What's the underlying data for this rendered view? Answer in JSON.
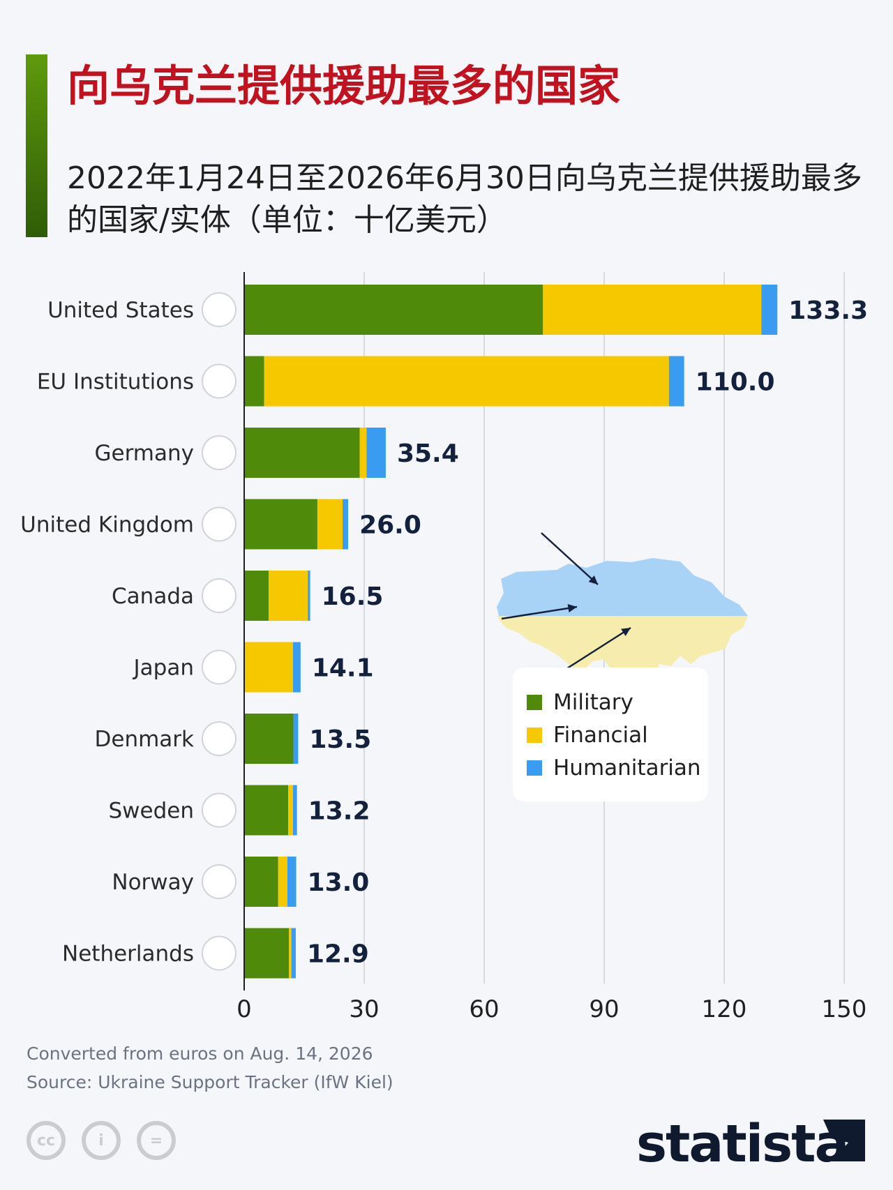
{
  "header": {
    "title": "向乌克兰提供援助最多的国家",
    "subtitle": "2022年1月24日至2026年6月30日向乌克兰提供援助最多的国家/实体（单位：十亿美元）"
  },
  "colors": {
    "accent_red": "#c1121f",
    "military": "#4f8a0b",
    "financial": "#f5c800",
    "humanitarian": "#3a9cf0",
    "map_blue": "#a9d2f7",
    "map_yellow": "#f6ecae"
  },
  "chart_data": {
    "type": "bar",
    "orientation": "horizontal",
    "stacked": true,
    "categories": [
      "United States",
      "EU Institutions",
      "Germany",
      "United Kingdom",
      "Canada",
      "Japan",
      "Denmark",
      "Sweden",
      "Norway",
      "Netherlands"
    ],
    "flags": [
      "us-flag-icon",
      "eu-flag-icon",
      "germany-flag-icon",
      "uk-flag-icon",
      "canada-flag-icon",
      "japan-flag-icon",
      "denmark-flag-icon",
      "sweden-flag-icon",
      "norway-flag-icon",
      "netherlands-flag-icon"
    ],
    "series": [
      {
        "name": "Military",
        "color": "#4f8a0b",
        "values": [
          74.7,
          5.0,
          28.9,
          18.3,
          6.1,
          0.0,
          12.3,
          11.0,
          8.5,
          11.2
        ]
      },
      {
        "name": "Financial",
        "color": "#f5c800",
        "values": [
          54.6,
          101.2,
          1.7,
          6.3,
          9.8,
          12.2,
          0.0,
          1.2,
          2.3,
          0.6
        ]
      },
      {
        "name": "Humanitarian",
        "color": "#3a9cf0",
        "values": [
          4.0,
          3.8,
          4.8,
          1.4,
          0.6,
          1.9,
          1.2,
          1.0,
          2.2,
          1.1
        ]
      }
    ],
    "totals": [
      "133.3",
      "110.0",
      "35.4",
      "26.0",
      "16.5",
      "14.1",
      "13.5",
      "13.2",
      "13.0",
      "12.9"
    ],
    "xlim": [
      0,
      150
    ],
    "xticks": [
      "0",
      "30",
      "60",
      "90",
      "120",
      "150"
    ],
    "grid": true,
    "legend_position": "right-middle"
  },
  "legend": {
    "items": [
      {
        "label": "Military",
        "color": "#4f8a0b"
      },
      {
        "label": "Financial",
        "color": "#f5c800"
      },
      {
        "label": "Humanitarian",
        "color": "#3a9cf0"
      }
    ]
  },
  "notes": {
    "converted": "Converted from euros on Aug. 14, 2026",
    "source": "Source: Ukraine Support Tracker (IfW Kiel)"
  },
  "footer": {
    "license_icons": [
      "cc-icon",
      "attribution-icon",
      "no-derivatives-icon"
    ],
    "license_text": [
      "cc",
      "i",
      "="
    ],
    "brand": "statista"
  }
}
